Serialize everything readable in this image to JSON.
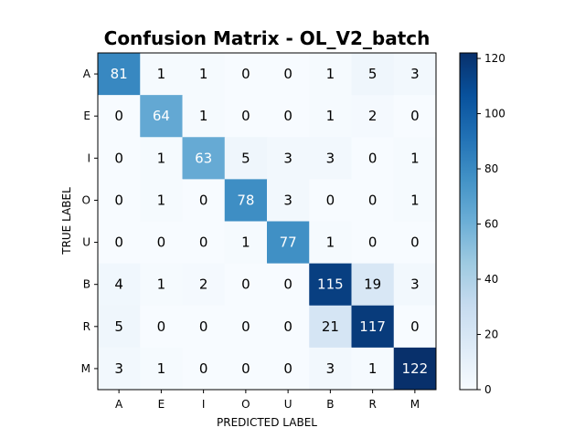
{
  "chart_data": {
    "type": "heatmap",
    "title": "Confusion Matrix - OL_V2_batch",
    "xlabel": "PREDICTED LABEL",
    "ylabel": "TRUE LABEL",
    "x_categories": [
      "A",
      "E",
      "I",
      "O",
      "U",
      "B",
      "R",
      "M"
    ],
    "y_categories": [
      "A",
      "E",
      "I",
      "O",
      "U",
      "B",
      "R",
      "M"
    ],
    "values": [
      [
        81,
        1,
        1,
        0,
        0,
        1,
        5,
        3
      ],
      [
        0,
        64,
        1,
        0,
        0,
        1,
        2,
        0
      ],
      [
        0,
        1,
        63,
        5,
        3,
        3,
        0,
        1
      ],
      [
        0,
        1,
        0,
        78,
        3,
        0,
        0,
        1
      ],
      [
        0,
        0,
        0,
        1,
        77,
        1,
        0,
        0
      ],
      [
        4,
        1,
        2,
        0,
        0,
        115,
        19,
        3
      ],
      [
        5,
        0,
        0,
        0,
        0,
        21,
        117,
        0
      ],
      [
        3,
        1,
        0,
        0,
        0,
        3,
        1,
        122
      ]
    ],
    "colormap": "Blues",
    "color_range": [
      0,
      122
    ],
    "colorbar_ticks": [
      0,
      20,
      40,
      60,
      80,
      100,
      120
    ],
    "colorbar_tick_labels": [
      "0",
      "20",
      "40",
      "60",
      "80",
      "100",
      "120"
    ],
    "grid": false,
    "legend": "colorbar-right"
  }
}
